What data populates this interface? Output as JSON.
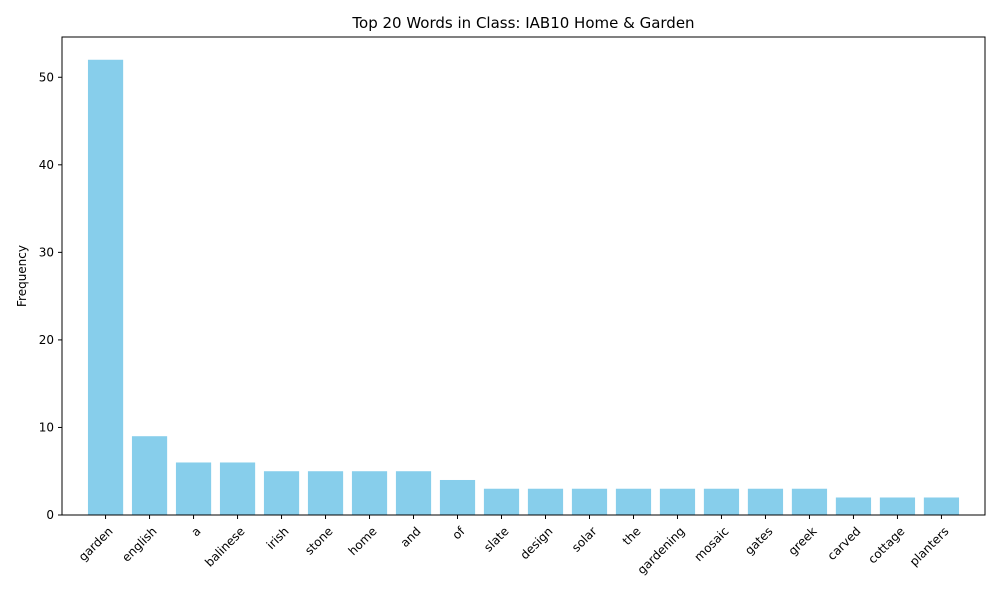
{
  "chart_data": {
    "type": "bar",
    "title": "Top 20 Words in Class: IAB10 Home & Garden",
    "xlabel": "",
    "ylabel": "Frequency",
    "ylim": [
      0,
      54.6
    ],
    "yticks": [
      0,
      10,
      20,
      30,
      40,
      50
    ],
    "grid": false,
    "bar_color": "#87ceeb",
    "categories": [
      "garden",
      "english",
      "a",
      "balinese",
      "irish",
      "stone",
      "home",
      "and",
      "of",
      "slate",
      "design",
      "solar",
      "the",
      "gardening",
      "mosaic",
      "gates",
      "greek",
      "carved",
      "cottage",
      "planters"
    ],
    "values": [
      52,
      9,
      6,
      6,
      5,
      5,
      5,
      5,
      4,
      3,
      3,
      3,
      3,
      3,
      3,
      3,
      3,
      2,
      2,
      2
    ]
  }
}
